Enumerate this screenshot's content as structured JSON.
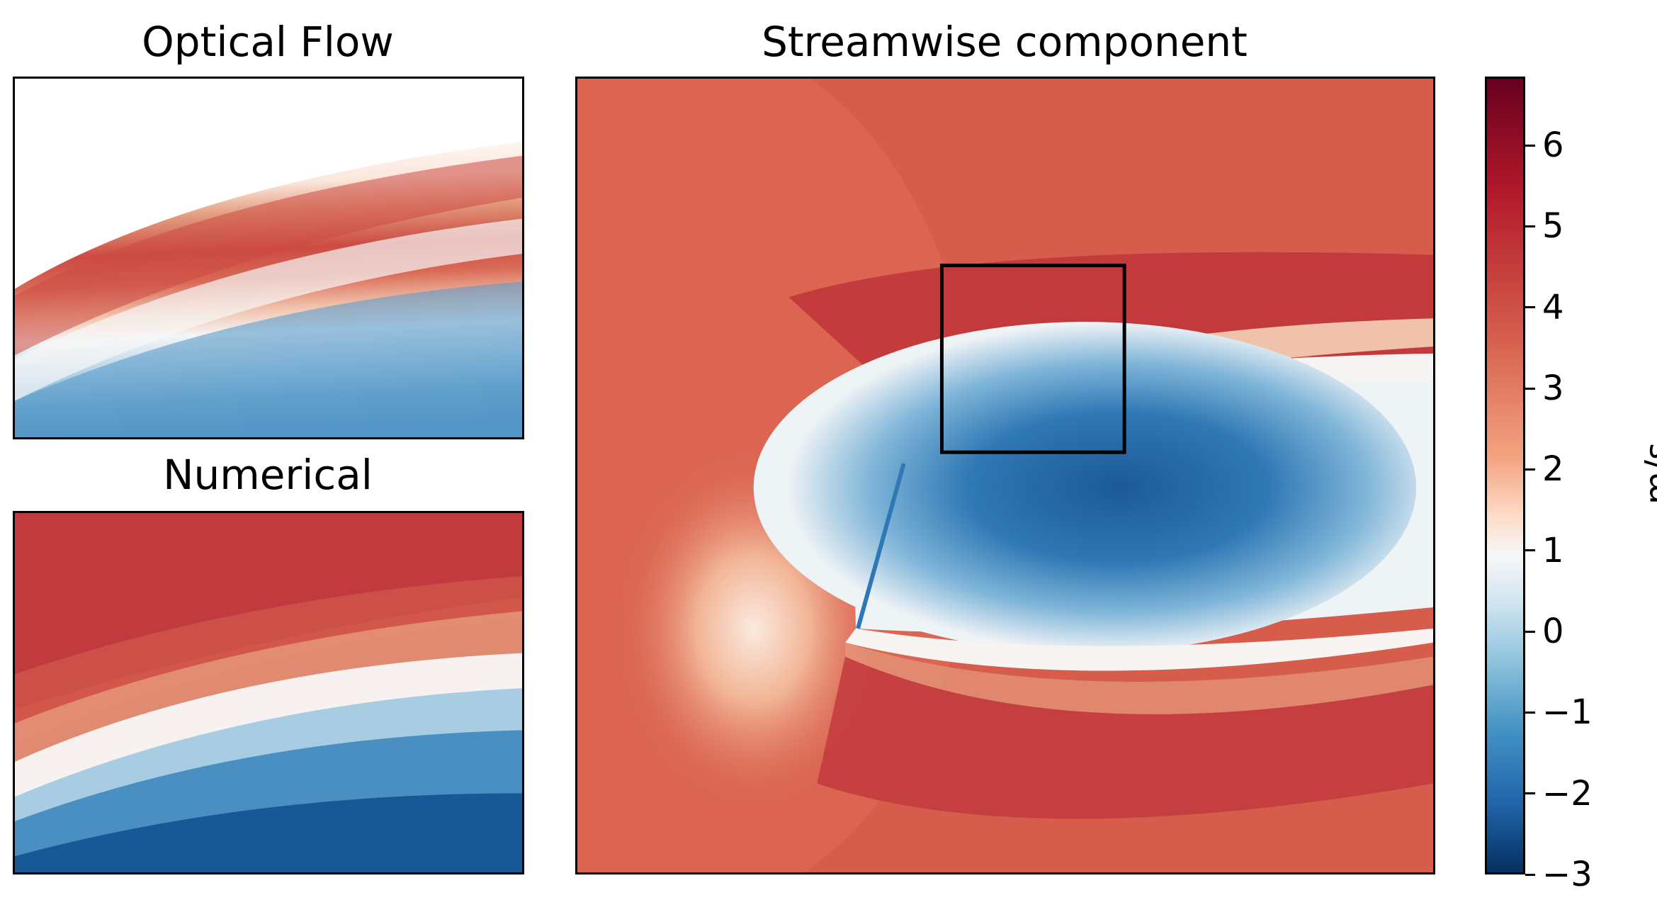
{
  "chart_data": [
    {
      "type": "heatmap",
      "title": "Optical Flow",
      "description": "Zoomed-in region of streamwise velocity field; white area at top-left is outside measured field.",
      "xlabel": "",
      "ylabel": ""
    },
    {
      "type": "heatmap",
      "title": "Numerical",
      "xlabel": "",
      "ylabel": ""
    },
    {
      "type": "heatmap",
      "title": "Streamwise component",
      "xlabel": "",
      "ylabel": "",
      "colorbar": {
        "label": "m/s",
        "range": [
          -3,
          6.85
        ],
        "ticks": [
          6,
          5,
          4,
          3,
          2,
          1,
          0,
          -1,
          -2,
          -3
        ],
        "tick_labels": [
          "6",
          "5",
          "4",
          "3",
          "2",
          "1",
          "0",
          "−1",
          "−2",
          "−3"
        ],
        "colormap": "RdBu_r"
      }
    }
  ]
}
